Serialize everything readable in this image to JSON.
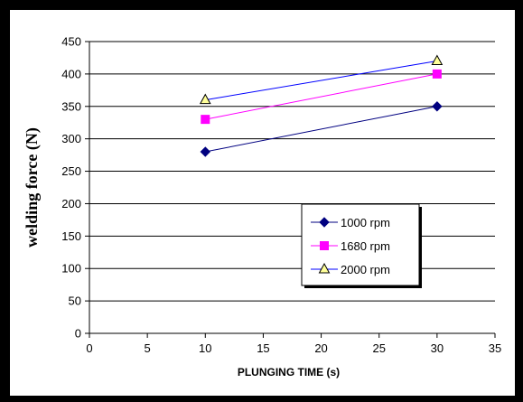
{
  "chart_data": {
    "type": "line",
    "xlabel": "PLUNGING TIME (s)",
    "ylabel": "welding force (N)",
    "xlim": [
      0,
      35
    ],
    "ylim": [
      0,
      450
    ],
    "xticks": [
      0,
      5,
      10,
      15,
      20,
      25,
      30,
      35
    ],
    "yticks": [
      0,
      50,
      100,
      150,
      200,
      250,
      300,
      350,
      400,
      450
    ],
    "grid": "horizontal",
    "legend_position": "center-right",
    "series": [
      {
        "name": "1000 rpm",
        "x": [
          10,
          30
        ],
        "y": [
          280,
          350
        ],
        "color": "#000080",
        "marker": "diamond"
      },
      {
        "name": "1680 rpm",
        "x": [
          10,
          30
        ],
        "y": [
          330,
          400
        ],
        "color": "#FF00FF",
        "marker": "square"
      },
      {
        "name": "2000 rpm",
        "x": [
          10,
          30
        ],
        "y": [
          360,
          420
        ],
        "color": "#0000FF",
        "marker": "triangle",
        "marker_fill": "#FFFF99"
      }
    ]
  }
}
